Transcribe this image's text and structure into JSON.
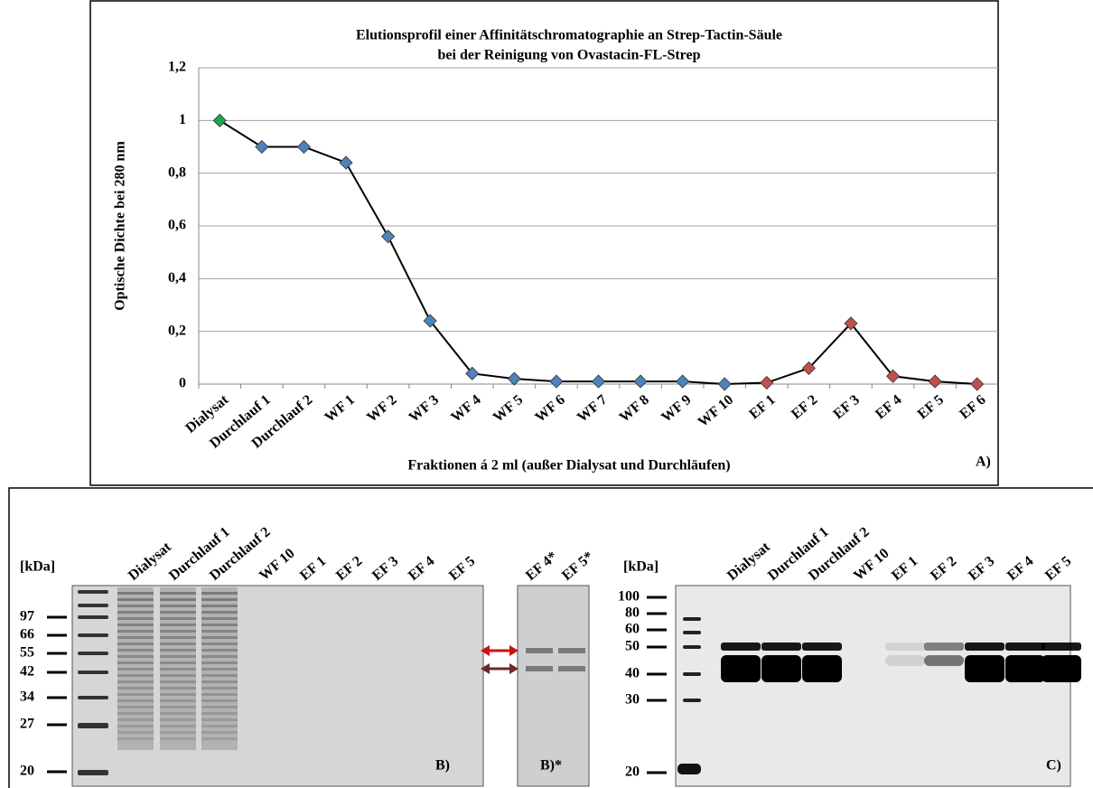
{
  "chart_data": {
    "type": "line",
    "title": [
      "Elutionsprofil einer Affinitätschromatographie an Strep-Tactin-Säule",
      "bei der Reinigung von Ovastacin-FL-Strep"
    ],
    "y_label": "Optische Dichte bei 280 nm",
    "x_label": "Fraktionen  á 2 ml (außer Dialysat und Durchläufen)",
    "panel_label": "A)",
    "categories": [
      "Dialysat",
      "Durchlauf 1",
      "Durchlauf 2",
      "WF 1",
      "WF 2",
      "WF 3",
      "WF 4",
      "WF 5",
      "WF 6",
      "WF 7",
      "WF 8",
      "WF 9",
      "WF 10",
      "EF 1",
      "EF 2",
      "EF 3",
      "EF 4",
      "EF 5",
      "EF 6"
    ],
    "values": [
      1.0,
      0.9,
      0.9,
      0.84,
      0.56,
      0.24,
      0.04,
      0.02,
      0.01,
      0.01,
      0.01,
      0.01,
      0.0,
      0.005,
      0.06,
      0.23,
      0.03,
      0.01,
      0.0
    ],
    "line_color": "#000000",
    "point_colors": [
      "#1ea64b",
      "#4f81bd",
      "#4f81bd",
      "#4f81bd",
      "#4f81bd",
      "#4f81bd",
      "#4f81bd",
      "#4f81bd",
      "#4f81bd",
      "#4f81bd",
      "#4f81bd",
      "#4f81bd",
      "#4f81bd",
      "#c0504d",
      "#c0504d",
      "#c0504d",
      "#c0504d",
      "#c0504d",
      "#c0504d"
    ],
    "ylim": [
      0,
      1.2
    ],
    "yticks": [
      0,
      {
        "value": 0.2,
        "label": "0,2"
      },
      {
        "value": 0.4,
        "label": "0,4"
      },
      {
        "value": 0.6,
        "label": "0,6"
      },
      {
        "value": 0.8,
        "label": "0,8"
      },
      1,
      {
        "value": 1.2,
        "label": "1,2"
      }
    ],
    "grid": true
  },
  "gels": {
    "b": {
      "unit": "[kDa]",
      "markers": [
        "97",
        "66",
        "55",
        "42",
        "34",
        "27",
        "20"
      ],
      "lanes": [
        "Dialysat",
        "Durchlauf 1",
        "Durchlauf 2",
        "WF 10",
        "EF 1",
        "EF 2",
        "EF 3",
        "EF 4",
        "EF 5"
      ],
      "panel_label": "B)"
    },
    "b_star": {
      "lanes": [
        "EF 4*",
        "EF 5*"
      ],
      "panel_label": "B)*"
    },
    "c": {
      "unit": "[kDa]",
      "markers": [
        "100",
        "80",
        "60",
        "50",
        "40",
        "30",
        "20"
      ],
      "lanes": [
        "Dialysat",
        "Durchlauf 1",
        "Durchlauf 2",
        "WF 10",
        "EF 1",
        "EF 2",
        "EF 3",
        "EF 4",
        "EF 5"
      ],
      "panel_label": "C)"
    }
  }
}
